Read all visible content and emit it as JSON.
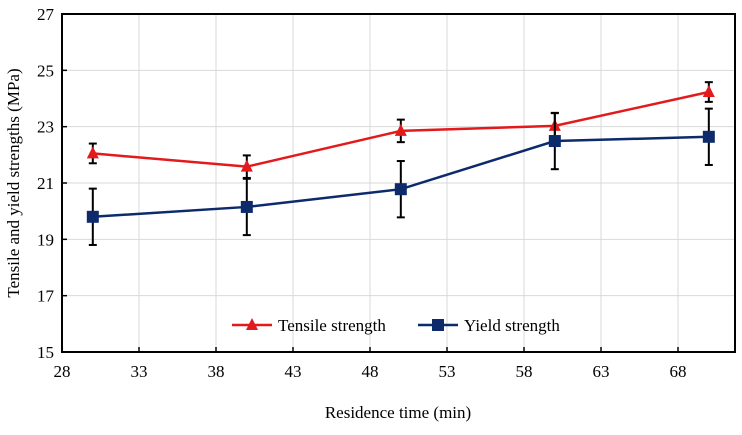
{
  "chart_data": {
    "type": "line",
    "title": "",
    "xlabel": "Residence time (min)",
    "ylabel": "Tensile and yield strengths (MPa)",
    "xlim": [
      28,
      71.7
    ],
    "ylim": [
      15,
      27
    ],
    "xticks": [
      28,
      33,
      38,
      43,
      48,
      53,
      58,
      63,
      68
    ],
    "yticks": [
      15,
      17,
      19,
      21,
      23,
      25,
      27
    ],
    "grid": true,
    "legend_position": "bottom-center",
    "x": [
      30,
      40,
      50,
      60,
      70
    ],
    "series": [
      {
        "name": "Tensile strength",
        "color": "#e31a1c",
        "marker": "triangle",
        "values": [
          22.05,
          21.58,
          22.85,
          23.03,
          24.23
        ],
        "errors": [
          0.35,
          0.4,
          0.4,
          0.45,
          0.35
        ]
      },
      {
        "name": "Yield strength",
        "color": "#0d2a6b",
        "marker": "square",
        "values": [
          19.8,
          20.15,
          20.78,
          22.49,
          22.64
        ],
        "errors": [
          1.0,
          1.0,
          1.0,
          1.0,
          1.0
        ]
      }
    ]
  }
}
